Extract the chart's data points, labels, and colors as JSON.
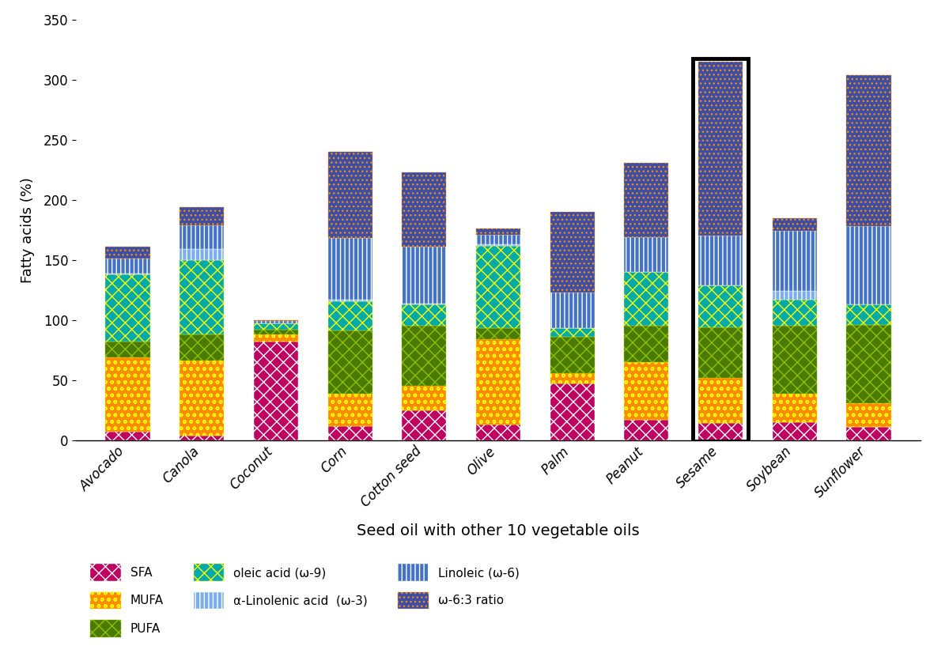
{
  "categories": [
    "Avocado",
    "Canola",
    "Coconut",
    "Corn",
    "Cotton seed",
    "Olive",
    "Palm",
    "Peanut",
    "Sesame",
    "Soybean",
    "Sunflower"
  ],
  "series": {
    "SFA": [
      7,
      4,
      82,
      12,
      25,
      13,
      47,
      17,
      14,
      15,
      11
    ],
    "MUFA": [
      62,
      62,
      6,
      27,
      20,
      71,
      9,
      48,
      38,
      24,
      20
    ],
    "PUFA": [
      13,
      22,
      4,
      52,
      50,
      9,
      30,
      30,
      42,
      56,
      65
    ],
    "oleic_9": [
      56,
      62,
      5,
      25,
      18,
      69,
      7,
      45,
      35,
      22,
      17
    ],
    "alpha_3": [
      1,
      9,
      0,
      1,
      1,
      1,
      0,
      0,
      0,
      7,
      0
    ],
    "linoleic_6": [
      12,
      20,
      2,
      51,
      47,
      8,
      30,
      29,
      41,
      50,
      65
    ],
    "omega_63": [
      10,
      15,
      1,
      72,
      62,
      5,
      67,
      62,
      145,
      11,
      126
    ]
  },
  "segment_colors": {
    "SFA": "#C00060",
    "MUFA": "#FF8C00",
    "PUFA": "#5A8A00",
    "oleic_9": "#00BFBF",
    "alpha_3": "#80BFFF",
    "linoleic_6": "#5080D0",
    "omega_63": "#4050B0"
  },
  "legend_labels": {
    "SFA": "SFA",
    "MUFA": "MUFA",
    "PUFA": "PUFA",
    "oleic_9": "oleic acid (ω-9)",
    "alpha_3": "α-Linolenic acid  (ω-3)",
    "linoleic_6": "Linoleic (ω-6)",
    "omega_63": "ω-6:3 ratio"
  },
  "ylabel": "Fatty acids (%)",
  "xlabel": "Seed oil with other 10 vegetable oils",
  "ylim": [
    0,
    350
  ],
  "yticks": [
    0,
    50,
    100,
    150,
    200,
    250,
    300,
    350
  ],
  "highlight_bar": "Sesame",
  "bar_width": 0.6,
  "background_color": "#ffffff"
}
